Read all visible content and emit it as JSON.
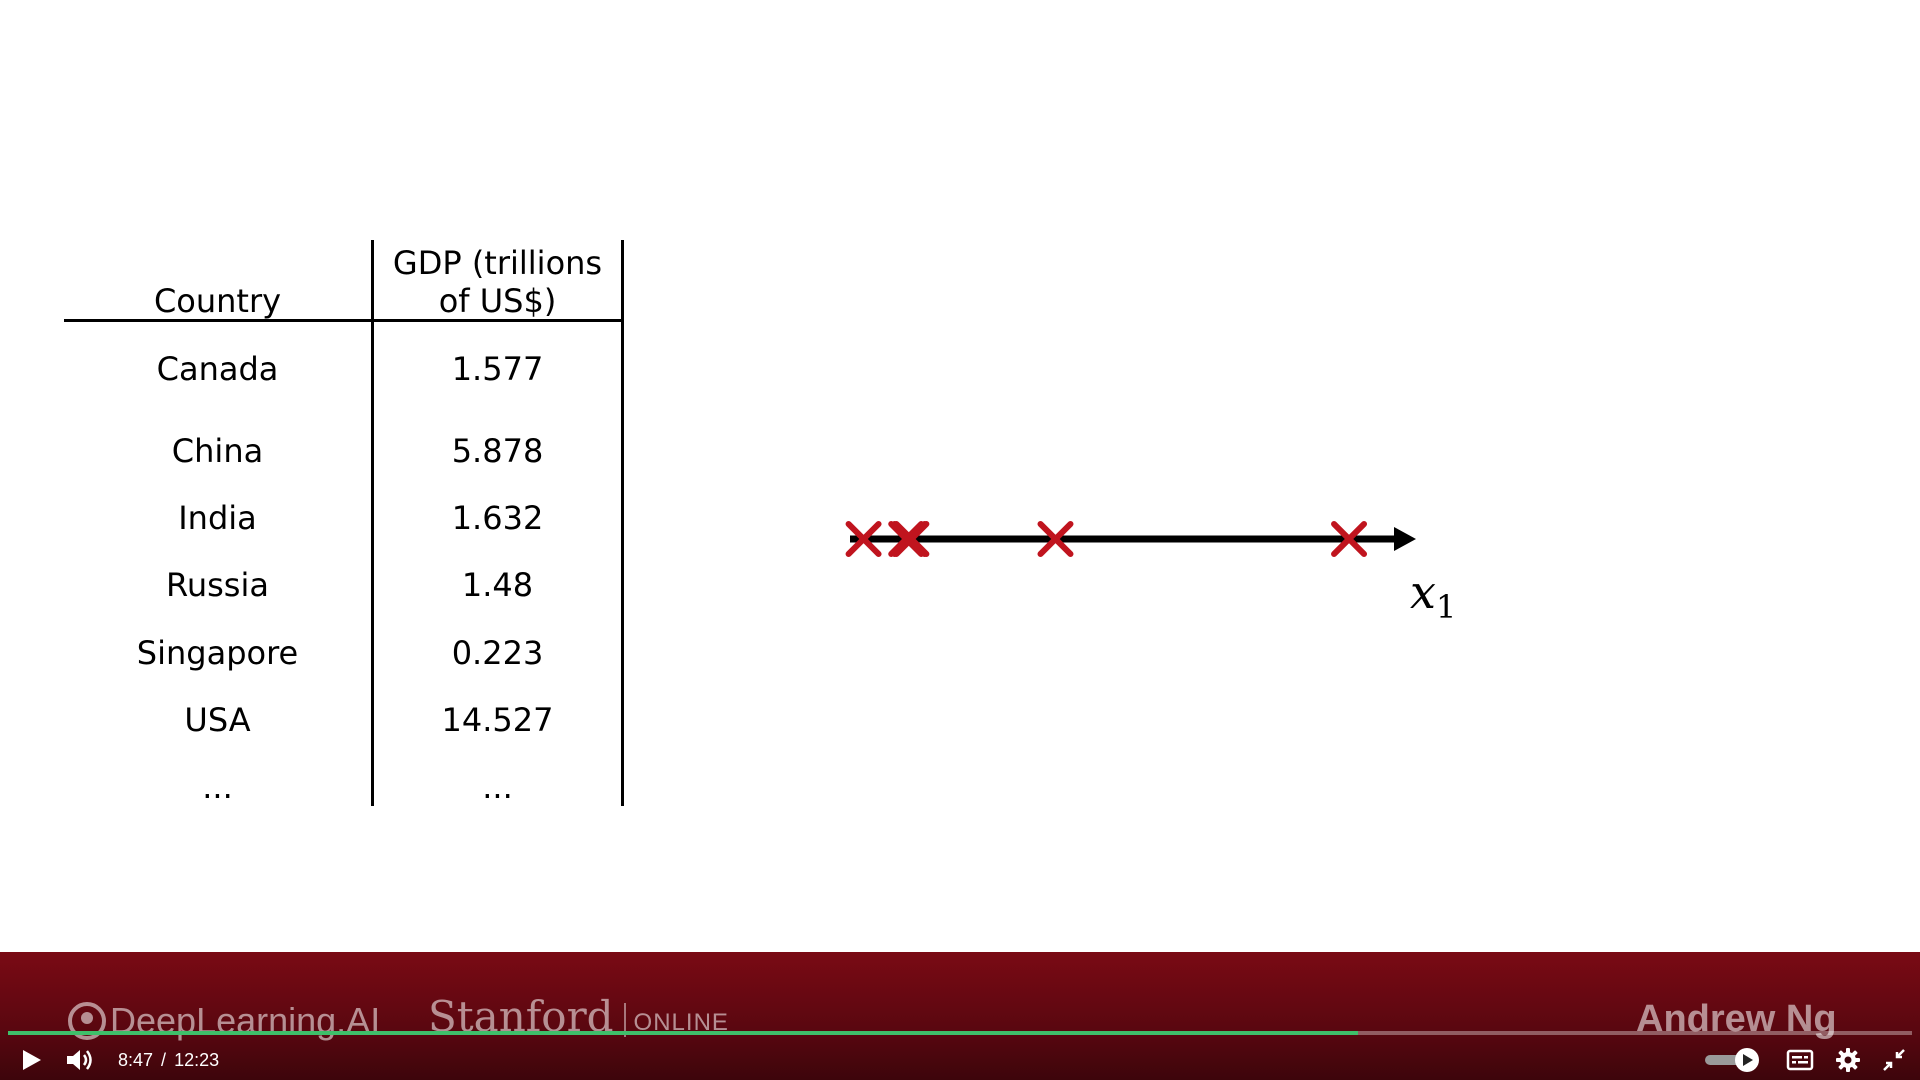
{
  "table": {
    "header": {
      "country": "Country",
      "gdp_line1": "GDP (trillions",
      "gdp_line2": "of US$)"
    },
    "rows": [
      {
        "country": "Canada",
        "gdp": "1.577"
      },
      {
        "country": "China",
        "gdp": "5.878"
      },
      {
        "country": "India",
        "gdp": "1.632"
      },
      {
        "country": "Russia",
        "gdp": "1.48"
      },
      {
        "country": "Singapore",
        "gdp": "0.223"
      },
      {
        "country": "USA",
        "gdp": "14.527"
      },
      {
        "country": "...",
        "gdp": "..."
      }
    ]
  },
  "axis": {
    "label": "x",
    "label_sub": "1",
    "marker_color": "#c0141e",
    "points": [
      0.223,
      1.48,
      1.577,
      1.632,
      5.878,
      14.527
    ],
    "range": [
      0,
      16.5
    ]
  },
  "branding": {
    "deeplearning": "DeepLearning.AI",
    "stanford": "Stanford",
    "online": "ONLINE",
    "instructor": "Andrew Ng"
  },
  "player": {
    "current_time": "8:47",
    "separator": "/",
    "duration": "12:23",
    "progress": 0.709,
    "progress_color": "#3fbf6a"
  }
}
